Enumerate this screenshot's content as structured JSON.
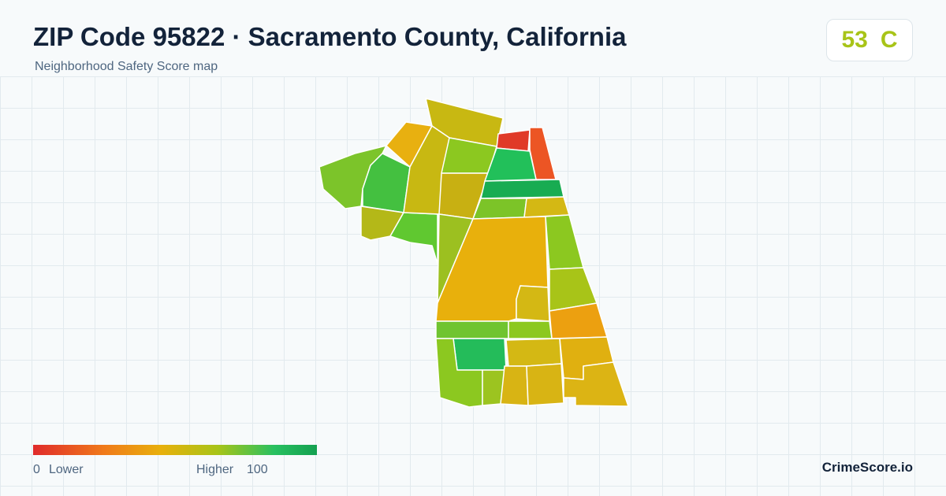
{
  "header": {
    "title": "ZIP Code 95822 · Sacramento County, California",
    "subtitle": "Neighborhood Safety Score map"
  },
  "score": {
    "value": 53,
    "grade": "C"
  },
  "legend": {
    "min": 0,
    "min_label": "Lower",
    "max_label": "Higher",
    "max": 100
  },
  "brand": "CrimeScore.io"
}
